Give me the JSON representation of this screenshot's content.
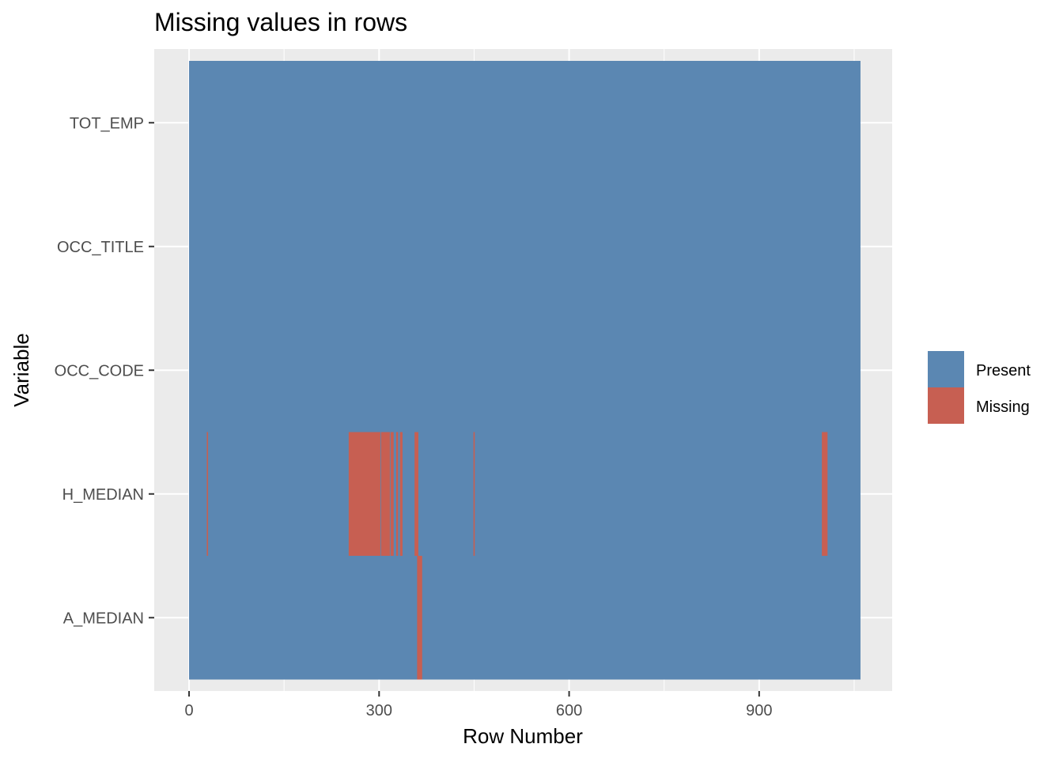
{
  "chart_data": {
    "type": "heatmap",
    "title": "Missing values in rows",
    "xlabel": "Row Number",
    "ylabel": "Variable",
    "xlim": [
      -55,
      1110
    ],
    "x_ticks": [
      0,
      300,
      600,
      900
    ],
    "variables": [
      "A_MEDIAN",
      "H_MEDIAN",
      "OCC_CODE",
      "OCC_TITLE",
      "TOT_EMP"
    ],
    "n_rows": 1060,
    "grid": true,
    "legend": {
      "placement": "right",
      "entries": [
        {
          "label": "Present",
          "color": "#5B87B2"
        },
        {
          "label": "Missing",
          "color": "#C75F52"
        }
      ]
    },
    "missing": [
      {
        "variable": "H_MEDIAN",
        "ranges": [
          [
            28,
            30
          ],
          [
            252,
            302
          ],
          [
            303,
            317
          ],
          [
            318,
            323
          ],
          [
            327,
            330
          ],
          [
            333,
            337
          ],
          [
            356,
            362
          ],
          [
            449,
            451
          ],
          [
            999,
            1008
          ]
        ]
      },
      {
        "variable": "A_MEDIAN",
        "ranges": [
          [
            360,
            368
          ]
        ]
      }
    ]
  }
}
